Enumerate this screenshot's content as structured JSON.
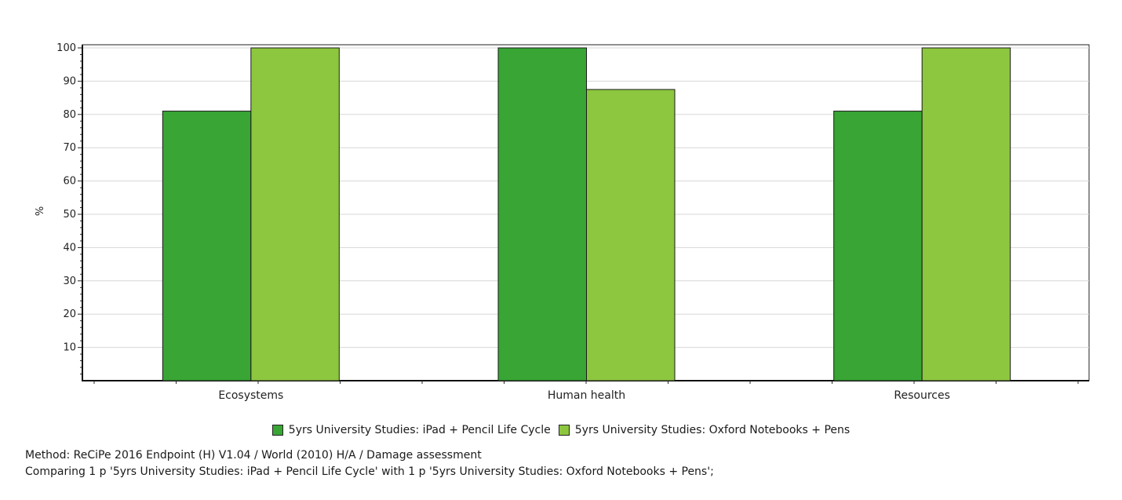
{
  "chart_data": {
    "type": "bar",
    "categories": [
      "Ecosystems",
      "Human health",
      "Resources"
    ],
    "series": [
      {
        "name": "5yrs University Studies: iPad + Pencil Life Cycle",
        "color": "#38a534",
        "values": [
          81,
          100,
          81
        ]
      },
      {
        "name": "5yrs University Studies: Oxford Notebooks + Pens",
        "color": "#8dc63f",
        "values": [
          100,
          87.5,
          100
        ]
      }
    ],
    "ylabel": "%",
    "ylim": [
      0,
      100
    ],
    "yticks": [
      10,
      20,
      30,
      40,
      50,
      60,
      70,
      80,
      90,
      100
    ],
    "grid": true,
    "legend_position": "bottom"
  },
  "notes": {
    "method": "Method: ReCiPe 2016 Endpoint (H) V1.04 / World (2010) H/A / Damage assessment",
    "comparing": "Comparing 1 p '5yrs University Studies: iPad + Pencil Life Cycle' with 1 p '5yrs University Studies: Oxford Notebooks + Pens';"
  }
}
